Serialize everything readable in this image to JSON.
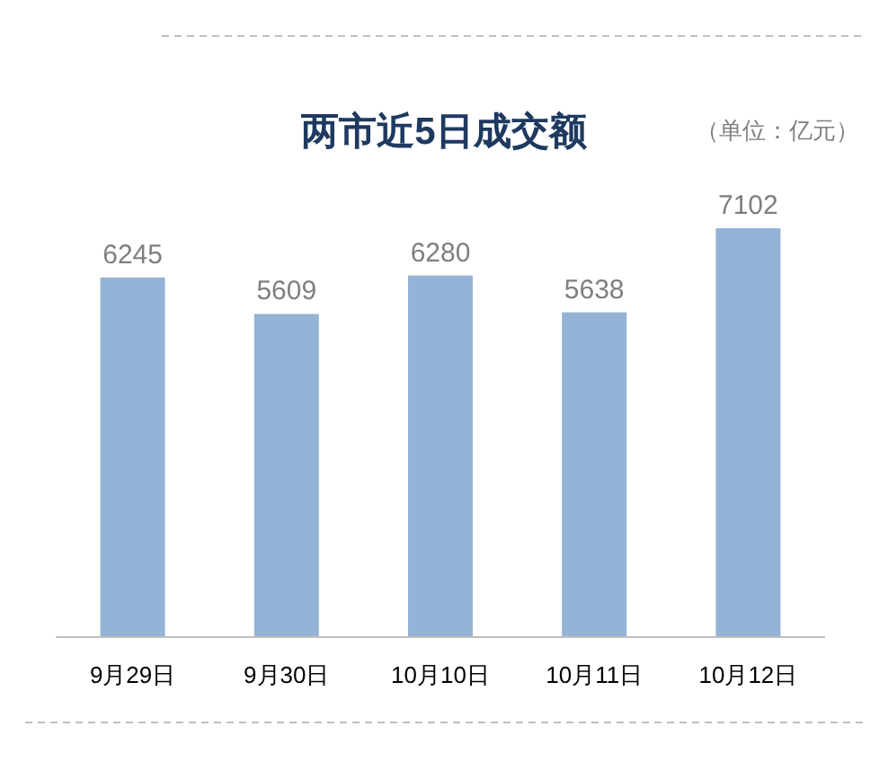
{
  "chart_data": {
    "type": "bar",
    "title": "两市近5日成交额",
    "annotations": [
      "（单位：亿元）"
    ],
    "categories": [
      "9月29日",
      "9月30日",
      "10月10日",
      "10月11日",
      "10月12日"
    ],
    "values": [
      6245,
      5609,
      6280,
      5638,
      7102
    ],
    "color": "#95b3d7",
    "data_labels": true
  }
}
